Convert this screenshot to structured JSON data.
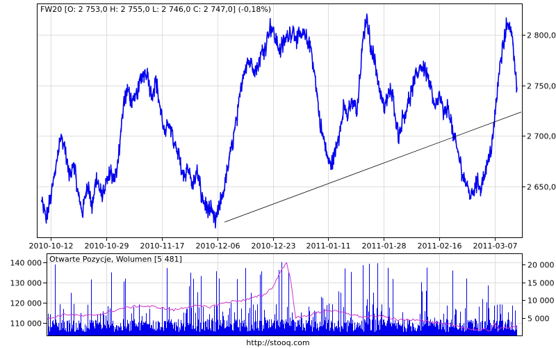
{
  "chart_data": [
    {
      "type": "line",
      "title": "FW20 [O: 2 753,0  H: 2 755,0  L: 2 746,0  C: 2 747,0] (-0,18%)",
      "x_ticks": [
        "2010-10-12",
        "2010-10-29",
        "2010-11-17",
        "2010-12-06",
        "2010-12-23",
        "2011-01-11",
        "2011-01-28",
        "2011-02-16",
        "2011-03-07"
      ],
      "y_ticks": [
        {
          "v": 2650,
          "label": "2 650,0"
        },
        {
          "v": 2700,
          "label": "2 700,0"
        },
        {
          "v": 2750,
          "label": "2 750,0"
        },
        {
          "v": 2800,
          "label": "2 800,0"
        }
      ],
      "ylim": [
        2600,
        2830
      ],
      "xlim": [
        0,
        104
      ],
      "grid": true,
      "series": [
        {
          "color": "#0000ee",
          "points": [
            [
              0,
              2635
            ],
            [
              1,
              2618
            ],
            [
              2,
              2640
            ],
            [
              3,
              2665
            ],
            [
              4,
              2700
            ],
            [
              5,
              2690
            ],
            [
              6,
              2660
            ],
            [
              7,
              2675
            ],
            [
              8,
              2640
            ],
            [
              9,
              2625
            ],
            [
              10,
              2655
            ],
            [
              11,
              2630
            ],
            [
              12,
              2660
            ],
            [
              13,
              2640
            ],
            [
              14,
              2650
            ],
            [
              15,
              2665
            ],
            [
              16,
              2655
            ],
            [
              17,
              2690
            ],
            [
              18,
              2735
            ],
            [
              19,
              2745
            ],
            [
              20,
              2730
            ],
            [
              21,
              2745
            ],
            [
              22,
              2760
            ],
            [
              23,
              2765
            ],
            [
              24,
              2740
            ],
            [
              25,
              2755
            ],
            [
              26,
              2725
            ],
            [
              27,
              2700
            ],
            [
              28,
              2715
            ],
            [
              29,
              2690
            ],
            [
              30,
              2680
            ],
            [
              31,
              2660
            ],
            [
              32,
              2670
            ],
            [
              33,
              2650
            ],
            [
              34,
              2665
            ],
            [
              35,
              2640
            ],
            [
              36,
              2630
            ],
            [
              37,
              2625
            ],
            [
              38,
              2615
            ],
            [
              39,
              2632
            ],
            [
              40,
              2650
            ],
            [
              41,
              2675
            ],
            [
              42,
              2700
            ],
            [
              43,
              2725
            ],
            [
              44,
              2760
            ],
            [
              45,
              2775
            ],
            [
              46,
              2770
            ],
            [
              47,
              2765
            ],
            [
              48,
              2780
            ],
            [
              49,
              2790
            ],
            [
              50,
              2810
            ],
            [
              51,
              2798
            ],
            [
              52,
              2785
            ],
            [
              53,
              2792
            ],
            [
              54,
              2800
            ],
            [
              55,
              2805
            ],
            [
              56,
              2795
            ],
            [
              57,
              2800
            ],
            [
              58,
              2795
            ],
            [
              59,
              2785
            ],
            [
              60,
              2750
            ],
            [
              61,
              2710
            ],
            [
              62,
              2690
            ],
            [
              63,
              2670
            ],
            [
              64,
              2680
            ],
            [
              65,
              2700
            ],
            [
              66,
              2730
            ],
            [
              67,
              2720
            ],
            [
              68,
              2735
            ],
            [
              69,
              2722
            ],
            [
              70,
              2780
            ],
            [
              71,
              2818
            ],
            [
              72,
              2790
            ],
            [
              73,
              2770
            ],
            [
              74,
              2745
            ],
            [
              75,
              2725
            ],
            [
              76,
              2745
            ],
            [
              77,
              2735
            ],
            [
              78,
              2700
            ],
            [
              79,
              2718
            ],
            [
              80,
              2730
            ],
            [
              81,
              2745
            ],
            [
              82,
              2760
            ],
            [
              83,
              2770
            ],
            [
              84,
              2765
            ],
            [
              85,
              2750
            ],
            [
              86,
              2725
            ],
            [
              87,
              2740
            ],
            [
              88,
              2720
            ],
            [
              89,
              2730
            ],
            [
              90,
              2700
            ],
            [
              91,
              2685
            ],
            [
              92,
              2665
            ],
            [
              93,
              2650
            ],
            [
              94,
              2640
            ],
            [
              95,
              2655
            ],
            [
              96,
              2650
            ],
            [
              97,
              2665
            ],
            [
              98,
              2680
            ],
            [
              99,
              2710
            ],
            [
              100,
              2760
            ],
            [
              101,
              2790
            ],
            [
              102,
              2815
            ],
            [
              103,
              2795
            ],
            [
              104,
              2748
            ]
          ]
        },
        {
          "color": "#000000",
          "type": "trendline",
          "points": [
            [
              40,
              2615
            ],
            [
              104,
              2723
            ]
          ]
        }
      ]
    },
    {
      "type": "bar",
      "title": "Otwarte Pozycje, Wolumen [5 481]",
      "left_ticks": [
        {
          "v": 110000,
          "label": "110 000"
        },
        {
          "v": 120000,
          "label": "120 000"
        },
        {
          "v": 130000,
          "label": "130 000"
        },
        {
          "v": 140000,
          "label": "140 000"
        }
      ],
      "left_range": [
        104000,
        144000
      ],
      "right_ticks": [
        {
          "v": 5000,
          "label": "5 000"
        },
        {
          "v": 10000,
          "label": "10 000"
        },
        {
          "v": 15000,
          "label": "15 000"
        },
        {
          "v": 20000,
          "label": "20 000"
        }
      ],
      "right_range": [
        0,
        23000
      ],
      "volume_color": "#0000ee",
      "volume_min": 1000,
      "volume_typical_max": 7000,
      "volume_spike_max": 21000,
      "open_interest": {
        "color": "#cc33cc",
        "points": [
          [
            0,
            112000
          ],
          [
            4,
            114500
          ],
          [
            8,
            113500
          ],
          [
            12,
            114500
          ],
          [
            16,
            117000
          ],
          [
            20,
            118500
          ],
          [
            24,
            118000
          ],
          [
            28,
            116500
          ],
          [
            32,
            118500
          ],
          [
            36,
            118000
          ],
          [
            40,
            120500
          ],
          [
            44,
            121500
          ],
          [
            48,
            124000
          ],
          [
            50,
            128000
          ],
          [
            51,
            132500
          ],
          [
            52,
            137000
          ],
          [
            53,
            139500
          ],
          [
            54,
            130000
          ],
          [
            55,
            112500
          ],
          [
            58,
            114000
          ],
          [
            62,
            116500
          ],
          [
            66,
            115000
          ],
          [
            70,
            113000
          ],
          [
            74,
            113500
          ],
          [
            78,
            111500
          ],
          [
            82,
            112000
          ],
          [
            86,
            110000
          ],
          [
            90,
            109000
          ],
          [
            94,
            107000
          ],
          [
            98,
            106500
          ],
          [
            99,
            110000
          ],
          [
            100,
            107000
          ],
          [
            104,
            109000
          ]
        ]
      }
    }
  ],
  "footer": {
    "source_text": "http://stooq.com"
  }
}
